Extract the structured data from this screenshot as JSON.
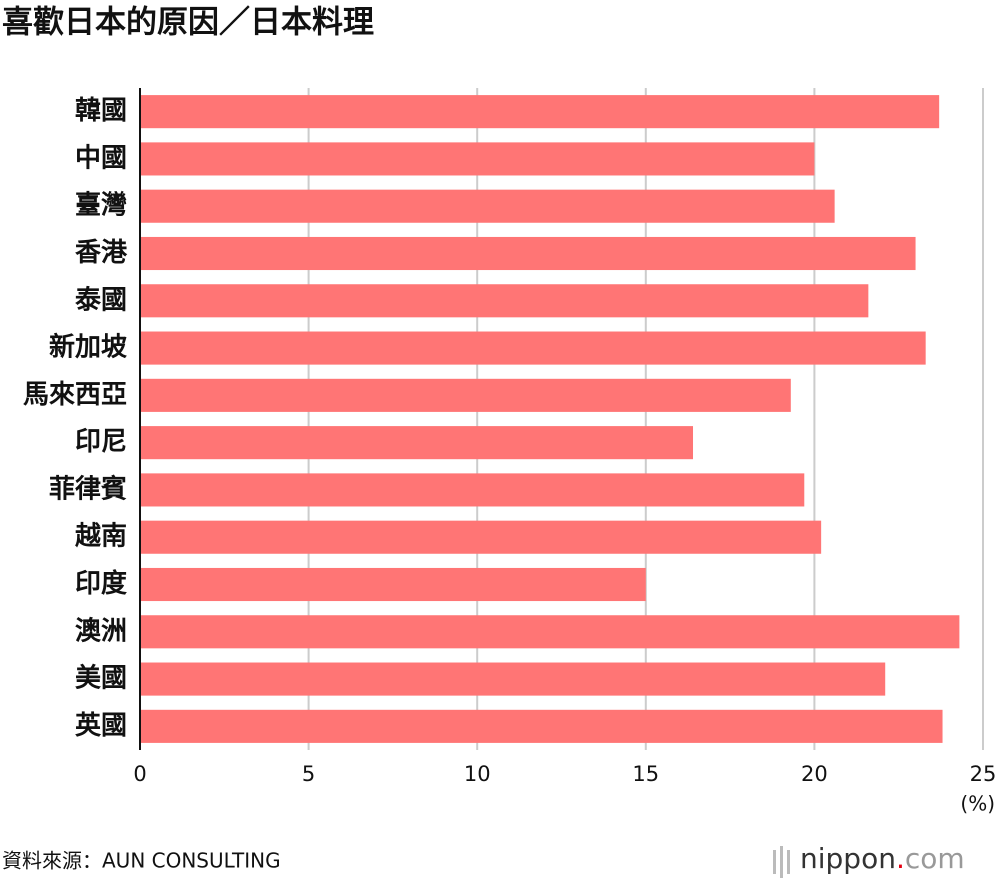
{
  "chart_data": {
    "type": "bar",
    "orientation": "horizontal",
    "title": "喜歡日本的原因／日本料理",
    "categories": [
      "韓國",
      "中國",
      "臺灣",
      "香港",
      "泰國",
      "新加坡",
      "馬來西亞",
      "印尼",
      "菲律賓",
      "越南",
      "印度",
      "澳洲",
      "美國",
      "英國"
    ],
    "values": [
      23.7,
      20.0,
      20.6,
      23.0,
      21.6,
      23.3,
      19.3,
      16.4,
      19.7,
      20.2,
      15.0,
      24.3,
      22.1,
      23.8
    ],
    "color": "#ff7575",
    "xlim": [
      0,
      25
    ],
    "xticks": [
      0,
      5,
      10,
      15,
      20,
      25
    ],
    "grid": true,
    "unit": "(%)",
    "source": "資料來源：AUN CONSULTING",
    "brand": {
      "name": "nippon",
      "dot": ".",
      "tld": "com"
    }
  }
}
